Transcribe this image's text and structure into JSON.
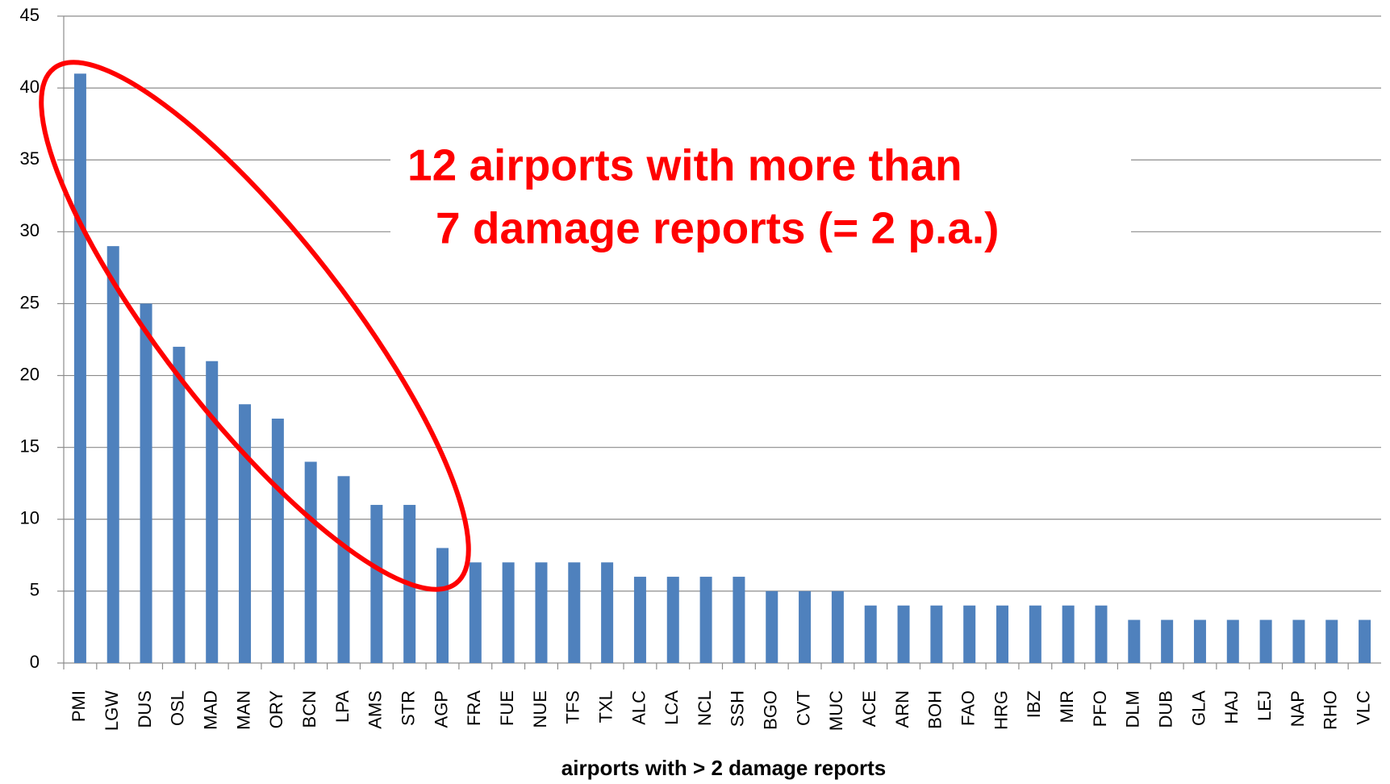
{
  "chart_data": {
    "type": "bar",
    "categories": [
      "PMI",
      "LGW",
      "DUS",
      "OSL",
      "MAD",
      "MAN",
      "ORY",
      "BCN",
      "LPA",
      "AMS",
      "STR",
      "AGP",
      "FRA",
      "FUE",
      "NUE",
      "TFS",
      "TXL",
      "ALC",
      "LCA",
      "NCL",
      "SSH",
      "BGO",
      "CVT",
      "MUC",
      "ACE",
      "ARN",
      "BOH",
      "FAO",
      "HRG",
      "IBZ",
      "MIR",
      "PFO",
      "DLM",
      "DUB",
      "GLA",
      "HAJ",
      "LEJ",
      "NAP",
      "RHO",
      "VLC"
    ],
    "values": [
      41,
      29,
      25,
      22,
      21,
      18,
      17,
      14,
      13,
      11,
      11,
      8,
      7,
      7,
      7,
      7,
      7,
      6,
      6,
      6,
      6,
      5,
      5,
      5,
      4,
      4,
      4,
      4,
      4,
      4,
      4,
      4,
      3,
      3,
      3,
      3,
      3,
      3,
      3,
      3
    ],
    "color": "#4f81bd",
    "ylim": [
      0,
      45
    ],
    "yticks": [
      0,
      5,
      10,
      15,
      20,
      25,
      30,
      35,
      40,
      45
    ],
    "grid": true,
    "x_label": "airports with > 2 damage reports",
    "annotations": [
      "12 airports with more than",
      "7 damage reports (= 2 p.a.)"
    ]
  }
}
